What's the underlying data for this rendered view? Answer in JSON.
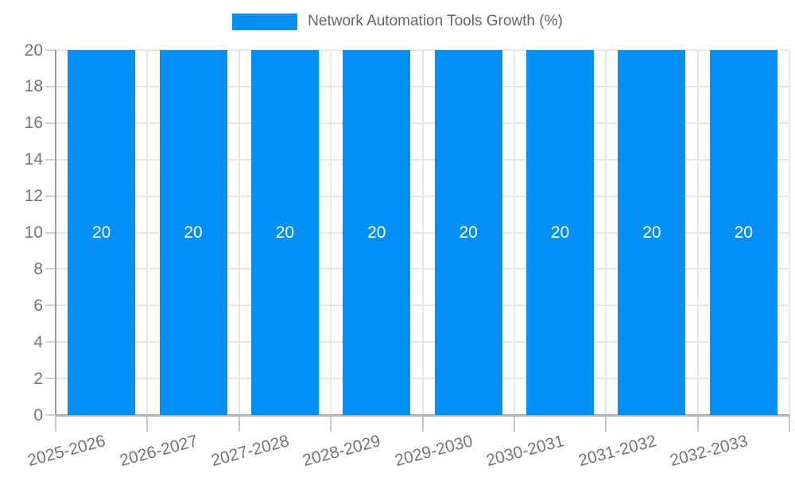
{
  "legend": {
    "label": "Network Automation Tools Growth (%)",
    "swatch_color": "#038FF6"
  },
  "chart_data": {
    "type": "bar",
    "title": "Network Automation Tools Growth (%)",
    "categories": [
      "2025-2026",
      "2026-2027",
      "2027-2028",
      "2028-2029",
      "2029-2030",
      "2030-2031",
      "2031-2032",
      "2032-2033"
    ],
    "series": [
      {
        "name": "Network Automation Tools Growth (%)",
        "values": [
          20,
          20,
          20,
          20,
          20,
          20,
          20,
          20
        ]
      }
    ],
    "bar_value_labels": [
      "20",
      "20",
      "20",
      "20",
      "20",
      "20",
      "20",
      "20"
    ],
    "xlabel": "",
    "ylabel": "",
    "ylim": [
      0,
      20
    ],
    "ytick_step": 2,
    "y_tick_labels": [
      "0",
      "2",
      "4",
      "6",
      "8",
      "10",
      "12",
      "14",
      "16",
      "18",
      "20"
    ],
    "grid": true,
    "legend_position": "top",
    "x_label_rotation_deg": -15,
    "colors": {
      "bar": "#038FF6",
      "bar_value_label": "#ffffff",
      "grid": "#e7e7e7",
      "axis": "#9c9c9c",
      "tick_label": "#757575",
      "legend_text": "#666666",
      "background": "#ffffff"
    }
  }
}
